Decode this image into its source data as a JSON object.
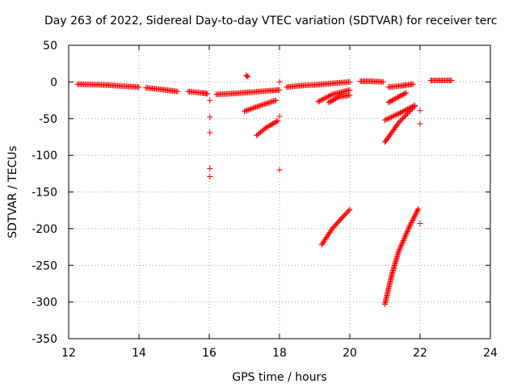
{
  "chart_data": {
    "type": "scatter",
    "title": "Day 263 of 2022, Sidereal Day-to-day VTEC variation (SDTVAR) for receiver terc",
    "xlabel": "GPS time / hours",
    "ylabel": "SDTVAR / TECUs",
    "xlim": [
      12,
      24
    ],
    "ylim": [
      -350,
      50
    ],
    "xticks": [
      "12",
      "14",
      "16",
      "18",
      "20",
      "22",
      "24"
    ],
    "yticks": [
      "50",
      "0",
      "-50",
      "-100",
      "-150",
      "-200",
      "-250",
      "-300",
      "-350"
    ],
    "grid": true,
    "marker": "+",
    "color": "#ff0000",
    "segments": [
      {
        "x": [
          12.25,
          13.0,
          14.0
        ],
        "y": [
          -3,
          -4,
          -7
        ]
      },
      {
        "x": [
          14.2,
          14.6,
          15.1
        ],
        "y": [
          -8,
          -10,
          -13
        ]
      },
      {
        "x": [
          15.4,
          15.8,
          15.95
        ],
        "y": [
          -13,
          -15,
          -16
        ]
      },
      {
        "x": [
          16.2,
          16.6,
          17.2,
          17.7,
          18.0
        ],
        "y": [
          -17,
          -16,
          -14,
          -12,
          -11
        ]
      },
      {
        "x": [
          17.05,
          17.1
        ],
        "y": [
          9,
          7
        ]
      },
      {
        "x": [
          17.0,
          17.4,
          17.9
        ],
        "y": [
          -40,
          -33,
          -25
        ]
      },
      {
        "x": [
          17.35,
          17.6,
          17.95
        ],
        "y": [
          -73,
          -63,
          -53
        ]
      },
      {
        "x": [
          18.2,
          18.6,
          19.0,
          19.5,
          20.0
        ],
        "y": [
          -7,
          -5,
          -4,
          -2,
          0
        ]
      },
      {
        "x": [
          19.1,
          19.5,
          20.0
        ],
        "y": [
          -27,
          -17,
          -11
        ]
      },
      {
        "x": [
          19.4,
          19.7,
          20.0
        ],
        "y": [
          -28,
          -20,
          -18
        ]
      },
      {
        "x": [
          20.3,
          20.6,
          20.95
        ],
        "y": [
          1,
          1,
          0
        ]
      },
      {
        "x": [
          21.1,
          21.5,
          21.8
        ],
        "y": [
          -7,
          -5,
          -3
        ]
      },
      {
        "x": [
          21.1,
          21.4,
          21.6
        ],
        "y": [
          -28,
          -20,
          -15
        ]
      },
      {
        "x": [
          21.0,
          21.4,
          21.85
        ],
        "y": [
          -52,
          -43,
          -32
        ]
      },
      {
        "x": [
          21.0,
          21.4,
          21.85
        ],
        "y": [
          -82,
          -55,
          -33
        ]
      },
      {
        "x": [
          19.2,
          19.5,
          19.8,
          20.0
        ],
        "y": [
          -222,
          -200,
          -184,
          -174
        ]
      },
      {
        "x": [
          21.0,
          21.2,
          21.4,
          21.7,
          21.95
        ],
        "y": [
          -303,
          -262,
          -230,
          -197,
          -173
        ]
      },
      {
        "x": [
          22.3,
          22.6,
          22.9
        ],
        "y": [
          2,
          2,
          2
        ]
      }
    ],
    "points": [
      {
        "x": 16.02,
        "y": -25
      },
      {
        "x": 16.02,
        "y": -48
      },
      {
        "x": 16.02,
        "y": -69
      },
      {
        "x": 16.02,
        "y": -118
      },
      {
        "x": 16.02,
        "y": -129
      },
      {
        "x": 18.0,
        "y": 0
      },
      {
        "x": 18.0,
        "y": -47
      },
      {
        "x": 18.0,
        "y": -120
      },
      {
        "x": 22.0,
        "y": -39
      },
      {
        "x": 22.0,
        "y": -57
      },
      {
        "x": 22.0,
        "y": -193
      }
    ]
  }
}
